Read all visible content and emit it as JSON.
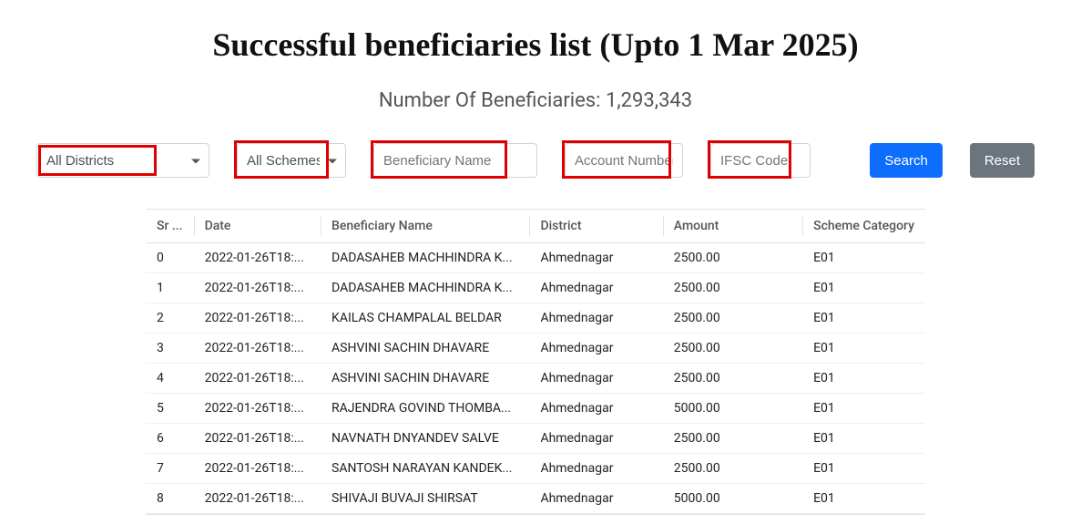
{
  "title": "Successful beneficiaries list (Upto 1 Mar 2025)",
  "subtitle_prefix": "Number Of Beneficiaries: ",
  "beneficiary_count": "1,293,343",
  "filters": {
    "district_selected": "All Districts",
    "scheme_selected": "All Schemes",
    "name_placeholder": "Beneficiary Name",
    "account_placeholder": "Account Number",
    "ifsc_placeholder": "IFSC Code",
    "search_label": "Search",
    "reset_label": "Reset"
  },
  "table": {
    "columns": [
      "Sr ...",
      "Date",
      "Beneficiary Name",
      "District",
      "Amount",
      "Scheme Category"
    ],
    "rows": [
      {
        "sr": "0",
        "date": "2022-01-26T18:...",
        "name": "DADASAHEB MACHHINDRA K...",
        "district": "Ahmednagar",
        "amount": "2500.00",
        "scheme": "E01"
      },
      {
        "sr": "1",
        "date": "2022-01-26T18:...",
        "name": "DADASAHEB MACHHINDRA K...",
        "district": "Ahmednagar",
        "amount": "2500.00",
        "scheme": "E01"
      },
      {
        "sr": "2",
        "date": "2022-01-26T18:...",
        "name": "KAILAS CHAMPALAL BELDAR",
        "district": "Ahmednagar",
        "amount": "2500.00",
        "scheme": "E01"
      },
      {
        "sr": "3",
        "date": "2022-01-26T18:...",
        "name": "ASHVINI SACHIN DHAVARE",
        "district": "Ahmednagar",
        "amount": "2500.00",
        "scheme": "E01"
      },
      {
        "sr": "4",
        "date": "2022-01-26T18:...",
        "name": "ASHVINI SACHIN DHAVARE",
        "district": "Ahmednagar",
        "amount": "2500.00",
        "scheme": "E01"
      },
      {
        "sr": "5",
        "date": "2022-01-26T18:...",
        "name": "RAJENDRA GOVIND THOMBA...",
        "district": "Ahmednagar",
        "amount": "5000.00",
        "scheme": "E01"
      },
      {
        "sr": "6",
        "date": "2022-01-26T18:...",
        "name": "NAVNATH DNYANDEV SALVE",
        "district": "Ahmednagar",
        "amount": "2500.00",
        "scheme": "E01"
      },
      {
        "sr": "7",
        "date": "2022-01-26T18:...",
        "name": "SANTOSH NARAYAN KANDEK...",
        "district": "Ahmednagar",
        "amount": "2500.00",
        "scheme": "E01"
      },
      {
        "sr": "8",
        "date": "2022-01-26T18:...",
        "name": "SHIVAJI BUVAJI SHIRSAT",
        "district": "Ahmednagar",
        "amount": "5000.00",
        "scheme": "E01"
      }
    ]
  },
  "highlights": [
    {
      "target": "district-select"
    },
    {
      "target": "scheme-select"
    },
    {
      "target": "name-input-hl"
    },
    {
      "target": "account-input-hl"
    },
    {
      "target": "ifsc-input-hl"
    }
  ],
  "colors": {
    "highlight_border": "#e00000",
    "primary": "#0d6efd",
    "secondary": "#6c757d",
    "border": "#dee2e6"
  }
}
